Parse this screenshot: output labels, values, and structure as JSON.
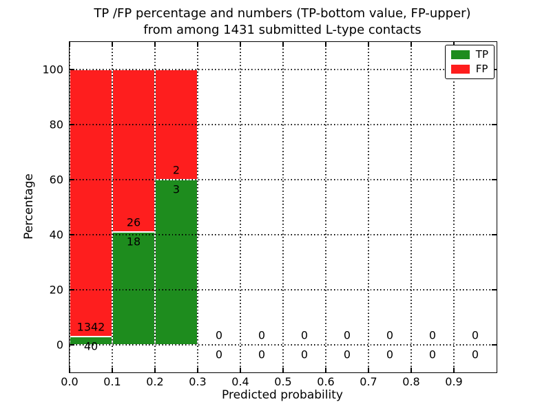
{
  "figure": {
    "title_line1": "TP /FP percentage and numbers (TP-bottom value, FP-upper)",
    "title_line2": "from among 1431 submitted L-type contacts",
    "xlabel": "Predicted probability",
    "ylabel": "Percentage"
  },
  "chart_data": {
    "type": "bar",
    "stacked": true,
    "title": "TP /FP percentage and numbers (TP-bottom value, FP-upper)\nfrom among 1431 submitted L-type contacts",
    "xlabel": "Predicted probability",
    "ylabel": "Percentage",
    "total_submitted_contacts": 1431,
    "xlim": [
      0.0,
      1.0
    ],
    "ylim": [
      -10,
      110
    ],
    "xticks": [
      0.0,
      0.1,
      0.2,
      0.3,
      0.4,
      0.5,
      0.6,
      0.7,
      0.8,
      0.9
    ],
    "yticks": [
      0,
      20,
      40,
      60,
      80,
      100
    ],
    "grid": true,
    "grid_style": "dotted",
    "legend_position": "upper right",
    "bin_width": 0.1,
    "bin_starts": [
      0.0,
      0.1,
      0.2,
      0.3,
      0.4,
      0.5,
      0.6,
      0.7,
      0.8,
      0.9
    ],
    "series": [
      {
        "name": "TP",
        "color": "#1e8c1e",
        "counts": [
          40,
          18,
          3,
          0,
          0,
          0,
          0,
          0,
          0,
          0
        ],
        "percentages": [
          2.9,
          40.9,
          60.0,
          0,
          0,
          0,
          0,
          0,
          0,
          0
        ]
      },
      {
        "name": "FP",
        "color": "#fe1e1e",
        "counts": [
          1342,
          26,
          2,
          0,
          0,
          0,
          0,
          0,
          0,
          0
        ],
        "percentages": [
          97.1,
          59.1,
          40.0,
          0,
          0,
          0,
          0,
          0,
          0,
          0
        ]
      }
    ],
    "colors": {
      "tp": "#1e8c1e",
      "fp": "#fe1e1e",
      "grid": "#000000",
      "axes": "#000000"
    }
  }
}
